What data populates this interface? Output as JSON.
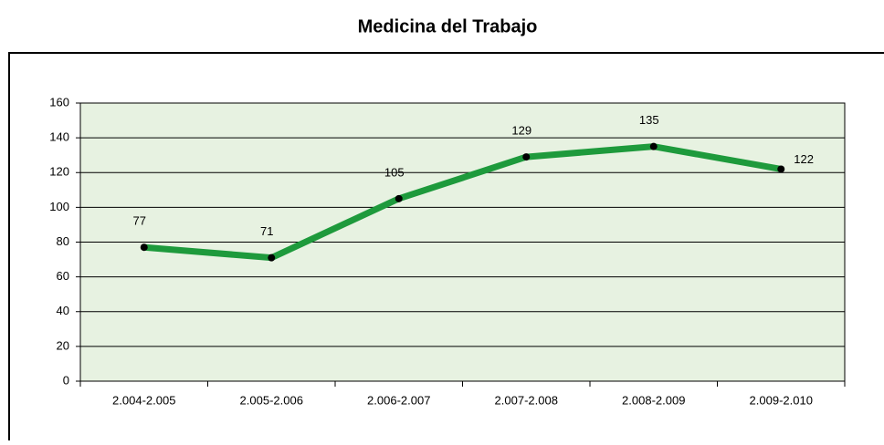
{
  "chart_data": {
    "type": "line",
    "title": "Medicina del Trabajo",
    "categories": [
      "2.004-2.005",
      "2.005-2.006",
      "2.006-2.007",
      "2.007-2.008",
      "2.008-2.009",
      "2.009-2.010"
    ],
    "values": [
      77,
      71,
      105,
      129,
      135,
      122
    ],
    "color": "#1e9a3c",
    "ylim": [
      0,
      160
    ],
    "yticks": [
      0,
      20,
      40,
      60,
      80,
      100,
      120,
      140,
      160
    ],
    "grid": true
  }
}
